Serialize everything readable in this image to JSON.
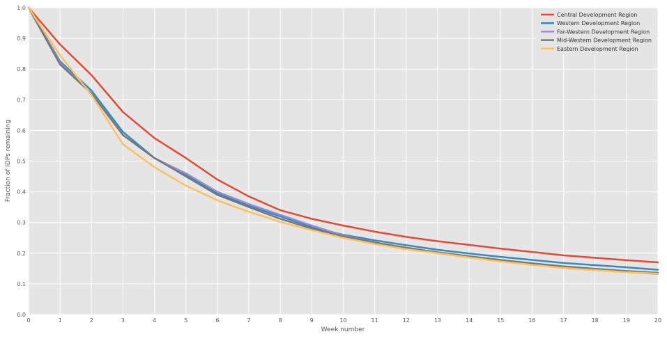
{
  "chart_data": {
    "type": "line",
    "xlabel": "Week number",
    "ylabel": "Fraction of IDPs remaining",
    "xlim": [
      0,
      20
    ],
    "ylim": [
      0.0,
      1.0
    ],
    "x_ticks": [
      "0",
      "1",
      "2",
      "3",
      "4",
      "5",
      "6",
      "7",
      "8",
      "9",
      "10",
      "11",
      "12",
      "13",
      "14",
      "15",
      "16",
      "17",
      "18",
      "19",
      "20"
    ],
    "y_ticks": [
      "0.0",
      "0.1",
      "0.2",
      "0.3",
      "0.4",
      "0.5",
      "0.6",
      "0.7",
      "0.8",
      "0.9",
      "1.0"
    ],
    "grid": true,
    "legend_position": "top-right",
    "x": [
      0,
      1,
      2,
      3,
      4,
      5,
      6,
      7,
      8,
      9,
      10,
      11,
      12,
      13,
      14,
      15,
      16,
      17,
      18,
      19,
      20
    ],
    "series": [
      {
        "name": "Central Development Region",
        "color": "#E24A33",
        "values": [
          1.0,
          0.88,
          0.78,
          0.66,
          0.575,
          0.51,
          0.44,
          0.385,
          0.34,
          0.312,
          0.29,
          0.27,
          0.253,
          0.239,
          0.227,
          0.215,
          0.204,
          0.193,
          0.185,
          0.177,
          0.17
        ]
      },
      {
        "name": "Western Development Region",
        "color": "#348ABD",
        "values": [
          1.0,
          0.825,
          0.73,
          0.595,
          0.51,
          0.455,
          0.395,
          0.355,
          0.32,
          0.285,
          0.26,
          0.242,
          0.226,
          0.211,
          0.199,
          0.188,
          0.178,
          0.168,
          0.161,
          0.154,
          0.146
        ]
      },
      {
        "name": "Far-Western Development Region",
        "color": "#988ED5",
        "values": [
          1.0,
          0.82,
          0.72,
          0.585,
          0.51,
          0.46,
          0.4,
          0.36,
          0.325,
          0.29,
          0.258,
          0.235,
          0.216,
          0.2,
          0.186,
          0.174,
          0.163,
          0.152,
          0.145,
          0.139,
          0.132
        ]
      },
      {
        "name": "Mid-Western Development Region",
        "color": "#777777",
        "values": [
          1.0,
          0.815,
          0.72,
          0.585,
          0.51,
          0.45,
          0.39,
          0.35,
          0.312,
          0.28,
          0.255,
          0.235,
          0.218,
          0.203,
          0.19,
          0.178,
          0.167,
          0.157,
          0.149,
          0.142,
          0.136
        ]
      },
      {
        "name": "Eastern Development Region",
        "color": "#FBC15E",
        "values": [
          1.0,
          0.845,
          0.715,
          0.555,
          0.48,
          0.42,
          0.372,
          0.335,
          0.302,
          0.275,
          0.25,
          0.23,
          0.213,
          0.2,
          0.186,
          0.173,
          0.162,
          0.152,
          0.145,
          0.138,
          0.133
        ]
      }
    ]
  }
}
